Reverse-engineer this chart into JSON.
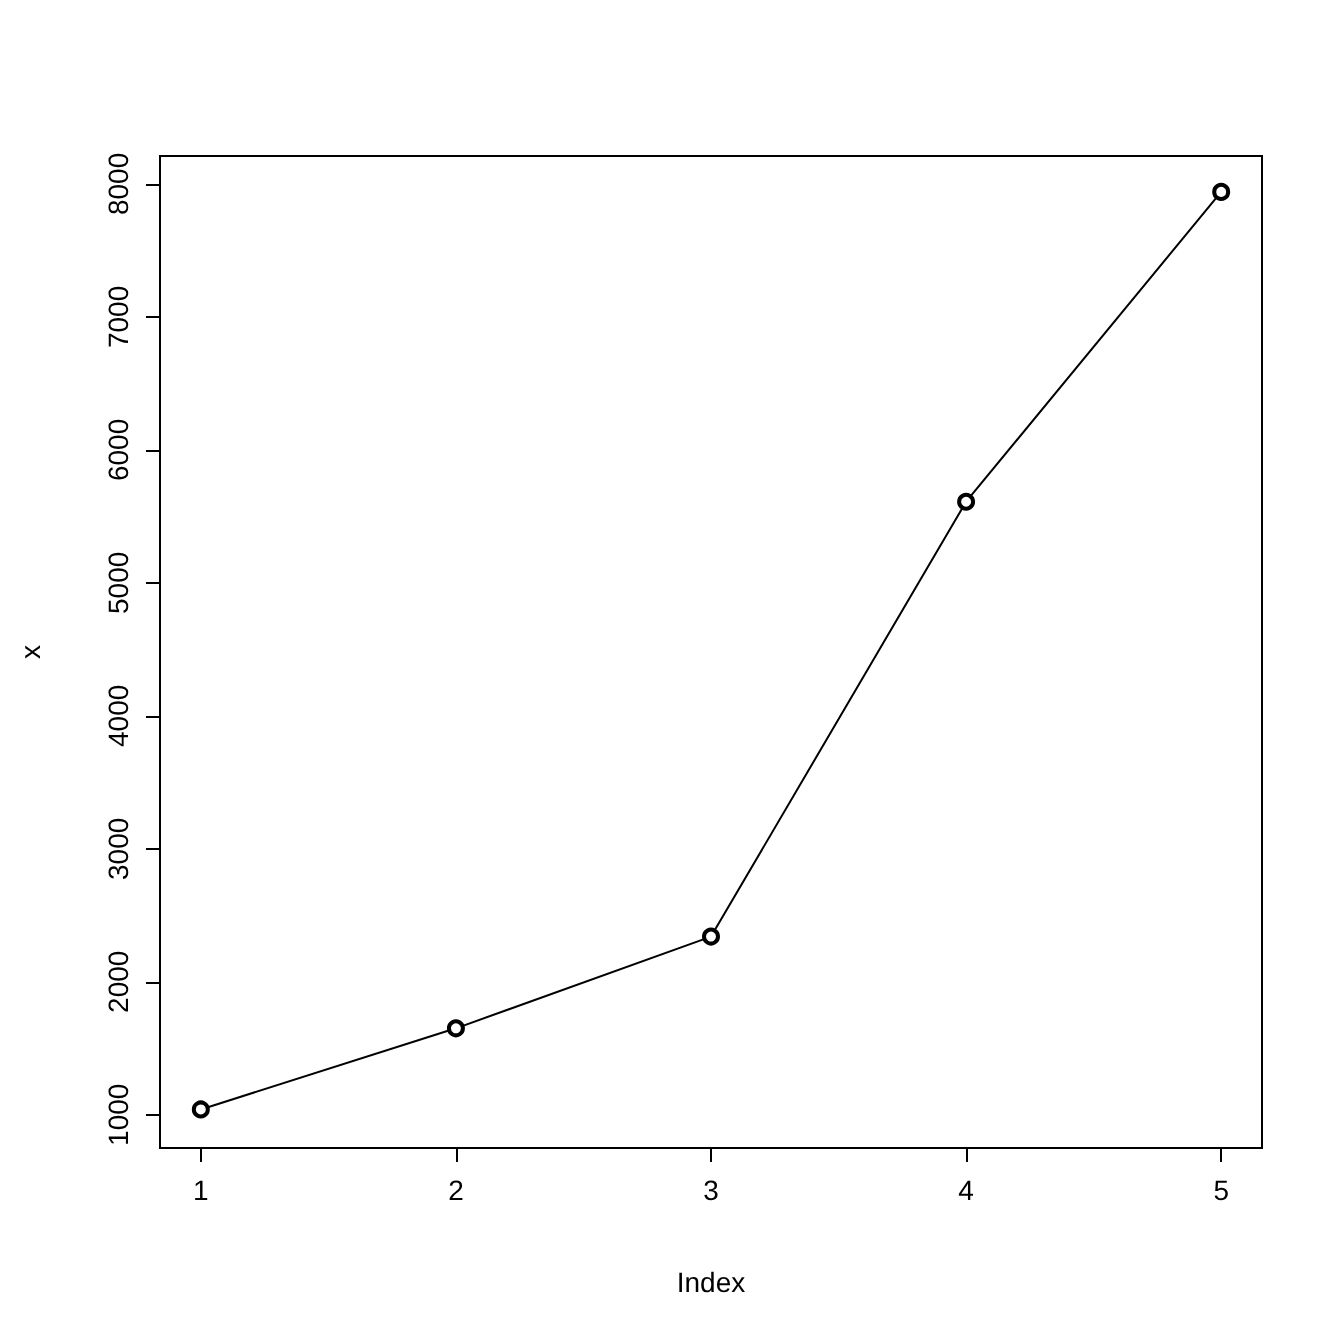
{
  "chart_data": {
    "type": "line",
    "xlabel": "Index",
    "ylabel": "x",
    "x": [
      1,
      2,
      3,
      4,
      5
    ],
    "series": [
      {
        "color": "#000000",
        "values": [
          1040,
          1650,
          2340,
          5610,
          7940
        ]
      }
    ],
    "xlim": [
      0.84,
      5.16
    ],
    "xticks": [
      1,
      2,
      3,
      4,
      5
    ],
    "ylim": [
      750,
      8210
    ],
    "yticks": [
      1000,
      2000,
      3000,
      4000,
      5000,
      6000,
      7000,
      8000
    ],
    "marker": "circle",
    "line_style": "solid"
  }
}
